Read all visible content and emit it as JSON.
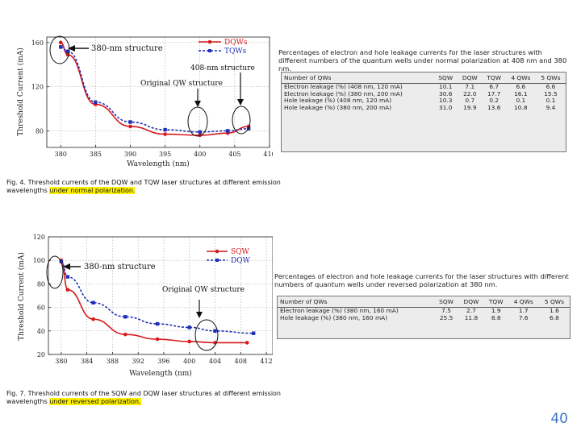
{
  "colors": {
    "red": "#d7191c",
    "blue": "#1f2fb5",
    "highlight": "#fff200",
    "page_number": "#3c74c8"
  },
  "chart_data": [
    {
      "type": "line",
      "title": "",
      "xlabel": "Wavelength (nm)",
      "ylabel": "Threshold Current (mA)",
      "xlim": [
        378,
        410
      ],
      "ylim": [
        65,
        165
      ],
      "xticks": [
        380,
        385,
        390,
        395,
        400,
        405,
        410
      ],
      "yticks": [
        80,
        120,
        160
      ],
      "series": [
        {
          "name": "DQWs",
          "color": "#d7191c",
          "marker": "circle",
          "x": [
            380,
            381,
            385,
            390,
            395,
            400,
            404,
            407
          ],
          "y": [
            160,
            149,
            104,
            84,
            77,
            76,
            78,
            84
          ]
        },
        {
          "name": "TQWs",
          "color": "#1f2fb5",
          "marker": "square",
          "x": [
            380,
            381,
            385,
            390,
            395,
            400,
            404,
            407
          ],
          "y": [
            156,
            152,
            106,
            88,
            81,
            79,
            80,
            82
          ]
        }
      ],
      "annotations": [
        "380-nm structure",
        "408-nm structure",
        "Original QW structure"
      ]
    },
    {
      "type": "line",
      "title": "",
      "xlabel": "Wavelength (nm)",
      "ylabel": "Threshold Current (mA)",
      "xlim": [
        378,
        413
      ],
      "ylim": [
        20,
        120
      ],
      "xticks": [
        380,
        384,
        388,
        392,
        396,
        400,
        404,
        408,
        412
      ],
      "yticks": [
        20,
        40,
        60,
        80,
        100,
        120
      ],
      "series": [
        {
          "name": "SQW",
          "color": "#d7191c",
          "marker": "circle",
          "x": [
            380,
            381,
            385,
            390,
            395,
            400,
            404,
            409
          ],
          "y": [
            100,
            75,
            50,
            37,
            33,
            31,
            30,
            30
          ]
        },
        {
          "name": "DQW",
          "color": "#1f2fb5",
          "marker": "square",
          "x": [
            380,
            381,
            385,
            390,
            395,
            400,
            404,
            410
          ],
          "y": [
            99,
            86,
            64,
            52,
            46,
            43,
            40,
            38
          ]
        }
      ],
      "annotations": [
        "380-nm structure",
        "Original QW structure"
      ]
    }
  ],
  "figures": {
    "fig4_caption": "Fig. 4. Threshold currents of the DQW and TQW laser structures at different emission wavelengths",
    "fig4_caption_hl": "under normal polarization.",
    "fig7_caption": "Fig. 7. Threshold currents of the SQW and DQW laser structures at different emission wavelengths",
    "fig7_caption_hl": "under reversed polarization."
  },
  "table1": {
    "title": "Percentages of electron and hole leakage currents for the laser structures with different numbers of the quantum wells under normal polarization at 408 nm and 380 nm.",
    "headers": [
      "Number of QWs",
      "SQW",
      "DQW",
      "TQW",
      "4 QWs",
      "5 QWs"
    ],
    "rows": [
      [
        "Electron leakage (%) (408 nm, 120 mA)",
        "10.1",
        "7.1",
        "6.7",
        "6.6",
        "6.6"
      ],
      [
        "Electron leakage (%) (380 nm, 200 mA)",
        "30.6",
        "22.0",
        "17.7",
        "16.1",
        "15.5"
      ],
      [
        "Hole leakage (%) (408 nm, 120 mA)",
        "10.3",
        "0.7",
        "0.2",
        "0.1",
        "0.1"
      ],
      [
        "Hole leakage (%) (380 nm, 200 mA)",
        "31.0",
        "19.9",
        "13.6",
        "10.8",
        "9.4"
      ]
    ]
  },
  "table2": {
    "title": "Percentages of electron and hole leakage currents for the laser structures with different numbers of quantum wells under reversed polarization at 380 nm.",
    "headers": [
      "Number of QWs",
      "SQW",
      "DQW",
      "TQW",
      "4 QWs",
      "5 QWs"
    ],
    "rows": [
      [
        "Electron leakage (%) (380 nm, 160 mA)",
        "7.5",
        "2.7",
        "1.9",
        "1.7",
        "1.6"
      ],
      [
        "Hole leakage (%) (380 nm, 160 mA)",
        "25.5",
        "11.8",
        "8.8",
        "7.6",
        "6.8"
      ]
    ]
  },
  "page_number": "40"
}
